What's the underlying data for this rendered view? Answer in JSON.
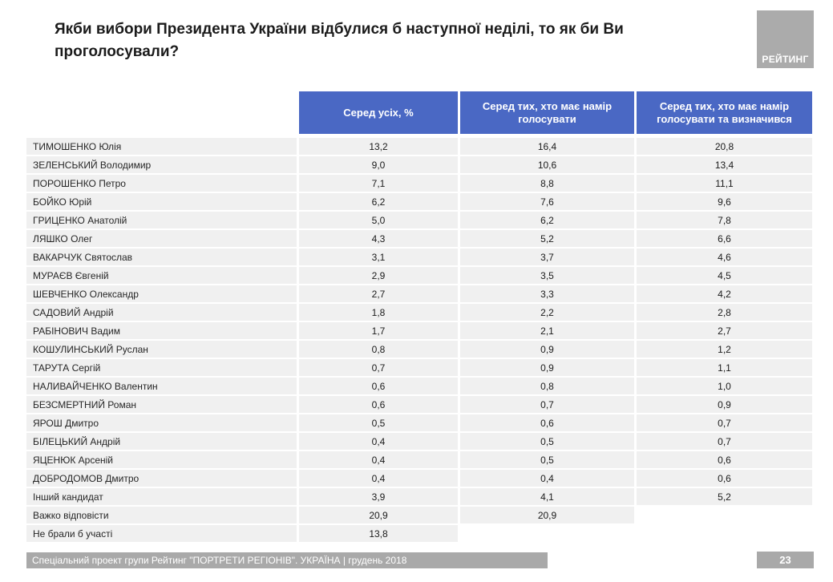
{
  "title": "Якби вибори Президента України відбулися б наступної неділі, то як би Ви проголосували?",
  "logo": {
    "label": "РЕЙТИНГ"
  },
  "chart_data": {
    "type": "table",
    "title": "Якби вибори Президента України відбулися б наступної неділі, то як би Ви проголосували?",
    "columns": [
      "Серед усіх, %",
      "Серед тих, хто має намір голосувати",
      "Серед тих, хто має намір голосувати та визначився"
    ],
    "rows": [
      {
        "name": "ТИМОШЕНКО Юлія",
        "values": [
          "13,2",
          "16,4",
          "20,8"
        ]
      },
      {
        "name": "ЗЕЛЕНСЬКИЙ Володимир",
        "values": [
          "9,0",
          "10,6",
          "13,4"
        ]
      },
      {
        "name": "ПОРОШЕНКО Петро",
        "values": [
          "7,1",
          "8,8",
          "11,1"
        ]
      },
      {
        "name": "БОЙКО Юрій",
        "values": [
          "6,2",
          "7,6",
          "9,6"
        ]
      },
      {
        "name": "ГРИЦЕНКО Анатолій",
        "values": [
          "5,0",
          "6,2",
          "7,8"
        ]
      },
      {
        "name": "ЛЯШКО Олег",
        "values": [
          "4,3",
          "5,2",
          "6,6"
        ]
      },
      {
        "name": "ВАКАРЧУК Святослав",
        "values": [
          "3,1",
          "3,7",
          "4,6"
        ]
      },
      {
        "name": "МУРАЄВ Євгеній",
        "values": [
          "2,9",
          "3,5",
          "4,5"
        ]
      },
      {
        "name": "ШЕВЧЕНКО Олександр",
        "values": [
          "2,7",
          "3,3",
          "4,2"
        ]
      },
      {
        "name": "САДОВИЙ Андрій",
        "values": [
          "1,8",
          "2,2",
          "2,8"
        ]
      },
      {
        "name": "РАБІНОВИЧ Вадим",
        "values": [
          "1,7",
          "2,1",
          "2,7"
        ]
      },
      {
        "name": "КОШУЛИНСЬКИЙ Руслан",
        "values": [
          "0,8",
          "0,9",
          "1,2"
        ]
      },
      {
        "name": "ТАРУТА Сергій",
        "values": [
          "0,7",
          "0,9",
          "1,1"
        ]
      },
      {
        "name": "НАЛИВАЙЧЕНКО Валентин",
        "values": [
          "0,6",
          "0,8",
          "1,0"
        ]
      },
      {
        "name": "БЕЗСМЕРТНИЙ Роман",
        "values": [
          "0,6",
          "0,7",
          "0,9"
        ]
      },
      {
        "name": "ЯРОШ Дмитро",
        "values": [
          "0,5",
          "0,6",
          "0,7"
        ]
      },
      {
        "name": "БІЛЕЦЬКИЙ Андрій",
        "values": [
          "0,4",
          "0,5",
          "0,7"
        ]
      },
      {
        "name": "ЯЦЕНЮК Арсеній",
        "values": [
          "0,4",
          "0,5",
          "0,6"
        ]
      },
      {
        "name": "ДОБРОДОМОВ Дмитро",
        "values": [
          "0,4",
          "0,4",
          "0,6"
        ]
      },
      {
        "name": "Інший кандидат",
        "values": [
          "3,9",
          "4,1",
          "5,2"
        ]
      },
      {
        "name": "Важко відповісти",
        "values": [
          "20,9",
          "20,9",
          null
        ]
      },
      {
        "name": "Не брали б участі",
        "values": [
          "13,8",
          null,
          null
        ]
      }
    ]
  },
  "footer": {
    "source": "Спеціальний проект групи Рейтинг \"ПОРТРЕТИ РЕГІОНІВ\". УКРАЇНА | грудень 2018",
    "page": "23"
  },
  "colors": {
    "header_bg": "#4a68c4",
    "row_bg": "#f0f0f0",
    "footer_bg": "#a9a9a9",
    "logo_bg": "#ababab"
  }
}
